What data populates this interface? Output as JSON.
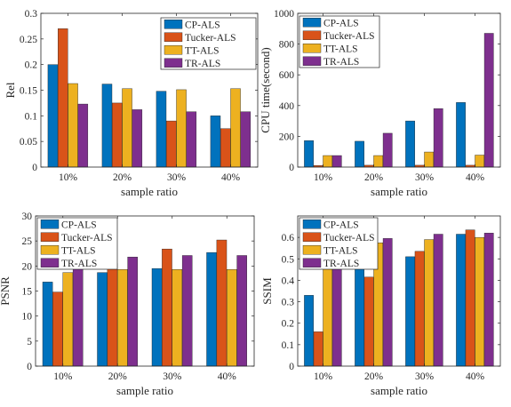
{
  "colors": {
    "CP-ALS": "#0072BD",
    "Tucker-ALS": "#D95319",
    "TT-ALS": "#EDB120",
    "TR-ALS": "#7E2F8E",
    "axis": "#262626"
  },
  "chart_data": [
    {
      "type": "bar",
      "categories": [
        "10%",
        "20%",
        "30%",
        "40%"
      ],
      "series": [
        {
          "name": "CP-ALS",
          "values": [
            0.2,
            0.162,
            0.148,
            0.1
          ]
        },
        {
          "name": "Tucker-ALS",
          "values": [
            0.27,
            0.125,
            0.09,
            0.075
          ]
        },
        {
          "name": "TT-ALS",
          "values": [
            0.163,
            0.153,
            0.151,
            0.153
          ]
        },
        {
          "name": "TR-ALS",
          "values": [
            0.123,
            0.112,
            0.108,
            0.108
          ]
        }
      ],
      "xlabel": "sample ratio",
      "ylabel": "Rel",
      "ylim": [
        0,
        0.3
      ],
      "yticks": [
        "0",
        "0.05",
        "0.1",
        "0.15",
        "0.2",
        "0.25",
        "0.3"
      ],
      "ytick_values": [
        0,
        0.05,
        0.1,
        0.15,
        0.2,
        0.25,
        0.3
      ],
      "grid": false,
      "legend": "top-right"
    },
    {
      "type": "bar",
      "categories": [
        "10%",
        "20%",
        "30%",
        "40%"
      ],
      "series": [
        {
          "name": "CP-ALS",
          "values": [
            172,
            168,
            300,
            420
          ]
        },
        {
          "name": "Tucker-ALS",
          "values": [
            10,
            12,
            12,
            12
          ]
        },
        {
          "name": "TT-ALS",
          "values": [
            75,
            75,
            98,
            78
          ]
        },
        {
          "name": "TR-ALS",
          "values": [
            75,
            220,
            380,
            870
          ]
        }
      ],
      "xlabel": "sample ratio",
      "ylabel": "CPU time(second)",
      "ylim": [
        0,
        1000
      ],
      "yticks": [
        "0",
        "200",
        "400",
        "600",
        "800",
        "1000"
      ],
      "ytick_values": [
        0,
        200,
        400,
        600,
        800,
        1000
      ],
      "grid": false,
      "legend": "top-left"
    },
    {
      "type": "bar",
      "categories": [
        "10%",
        "20%",
        "30%",
        "40%"
      ],
      "series": [
        {
          "name": "CP-ALS",
          "values": [
            16.8,
            18.7,
            19.5,
            22.7
          ]
        },
        {
          "name": "Tucker-ALS",
          "values": [
            14.8,
            20.5,
            23.4,
            25.2
          ]
        },
        {
          "name": "TT-ALS",
          "values": [
            18.7,
            19.3,
            19.3,
            19.3
          ]
        },
        {
          "name": "TR-ALS",
          "values": [
            20.0,
            21.8,
            22.1,
            22.1
          ]
        }
      ],
      "xlabel": "sample ratio",
      "ylabel": "PSNR",
      "ylim": [
        0,
        30
      ],
      "yticks": [
        "0",
        "5",
        "10",
        "15",
        "20",
        "25",
        "30"
      ],
      "ytick_values": [
        0,
        5,
        10,
        15,
        20,
        25,
        30
      ],
      "grid": false,
      "legend": "top-left"
    },
    {
      "type": "bar",
      "categories": [
        "10%",
        "20%",
        "30%",
        "40%"
      ],
      "series": [
        {
          "name": "CP-ALS",
          "values": [
            0.33,
            0.5,
            0.51,
            0.615
          ]
        },
        {
          "name": "Tucker-ALS",
          "values": [
            0.16,
            0.415,
            0.535,
            0.635
          ]
        },
        {
          "name": "TT-ALS",
          "values": [
            0.48,
            0.575,
            0.59,
            0.6
          ]
        },
        {
          "name": "TR-ALS",
          "values": [
            0.5,
            0.595,
            0.615,
            0.62
          ]
        }
      ],
      "xlabel": "sample ratio",
      "ylabel": "SSIM",
      "ylim": [
        0,
        0.7
      ],
      "yticks": [
        "0",
        "0.1",
        "0.2",
        "0.3",
        "0.4",
        "0.5",
        "0.6"
      ],
      "ytick_values": [
        0,
        0.1,
        0.2,
        0.3,
        0.4,
        0.5,
        0.6
      ],
      "grid": false,
      "legend": "top-left"
    }
  ]
}
